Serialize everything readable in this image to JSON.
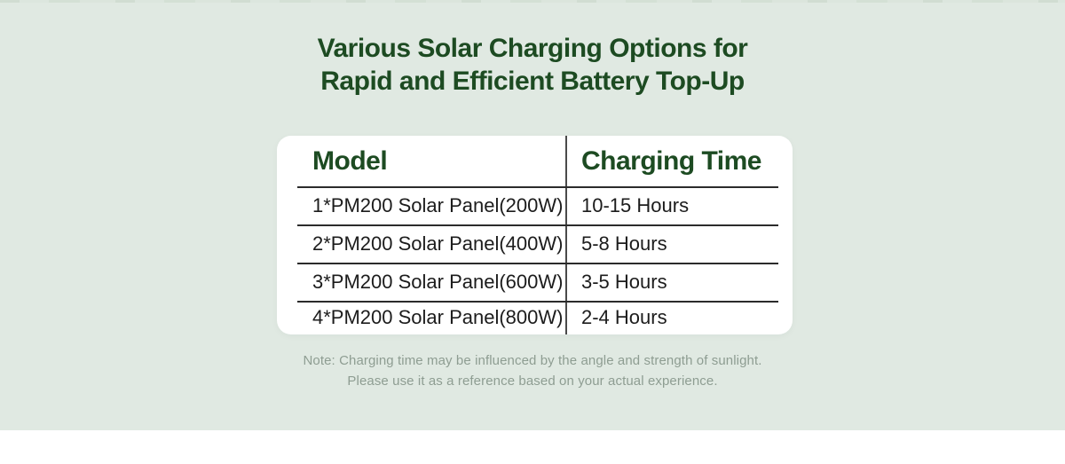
{
  "section": {
    "title_line1": "Various Solar Charging Options for",
    "title_line2": "Rapid and Efficient Battery Top-Up"
  },
  "table": {
    "headers": [
      "Model",
      "Charging Time"
    ],
    "rows": [
      {
        "model": "1*PM200 Solar Panel(200W)",
        "time": "10-15 Hours"
      },
      {
        "model": "2*PM200 Solar Panel(400W)",
        "time": "5-8 Hours"
      },
      {
        "model": "3*PM200 Solar Panel(600W)",
        "time": "3-5 Hours"
      },
      {
        "model": "4*PM200 Solar Panel(800W)",
        "time": "2-4 Hours"
      }
    ]
  },
  "note": {
    "line1": "Note: Charging time may be influenced by the angle and strength of sunlight.",
    "line2": "Please use it as a reference based on your actual experience."
  },
  "colors": {
    "section_background": "#e0e9e2",
    "card_background": "#ffffff",
    "heading_green": "#1d4b22",
    "body_text": "#1c1c1c",
    "table_line": "#2b2b2b",
    "column_divider": "#4a4a4a",
    "note_text": "#8e9d92"
  }
}
